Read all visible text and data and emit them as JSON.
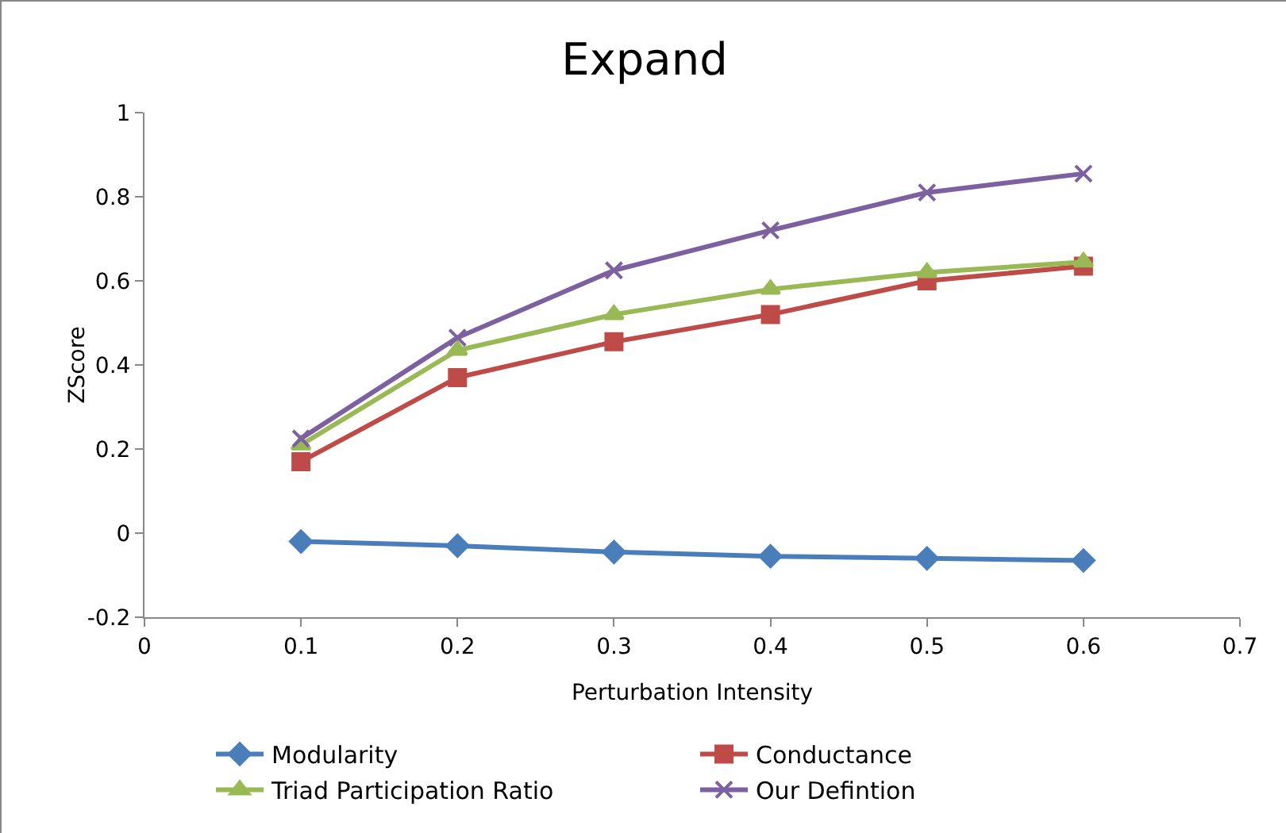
{
  "chart_data": {
    "type": "line",
    "title": "Expand",
    "xlabel": "Perturbation Intensity",
    "ylabel": "ZScore",
    "x": [
      0.1,
      0.2,
      0.3,
      0.4,
      0.5,
      0.6
    ],
    "series": [
      {
        "name": "Modularity",
        "color": "#4a7ebb",
        "marker": "diamond",
        "values": [
          -0.02,
          -0.03,
          -0.045,
          -0.055,
          -0.06,
          -0.065
        ]
      },
      {
        "name": "Conductance",
        "color": "#be4b48",
        "marker": "square",
        "values": [
          0.17,
          0.37,
          0.455,
          0.52,
          0.6,
          0.635
        ]
      },
      {
        "name": "Triad Participation Ratio",
        "color": "#98b954",
        "marker": "triangle",
        "values": [
          0.21,
          0.435,
          0.52,
          0.58,
          0.62,
          0.645
        ]
      },
      {
        "name": "Our Defintion",
        "color": "#7d60a0",
        "marker": "cross",
        "values": [
          0.225,
          0.465,
          0.625,
          0.72,
          0.81,
          0.855
        ]
      }
    ],
    "xlim": [
      0,
      0.7
    ],
    "xticks": [
      0,
      0.1,
      0.2,
      0.3,
      0.4,
      0.5,
      0.6,
      0.7
    ],
    "ylim": [
      -0.2,
      1
    ],
    "yticks": [
      -0.2,
      0,
      0.2,
      0.4,
      0.6,
      0.8,
      1
    ],
    "grid": false,
    "legend": "bottom"
  }
}
